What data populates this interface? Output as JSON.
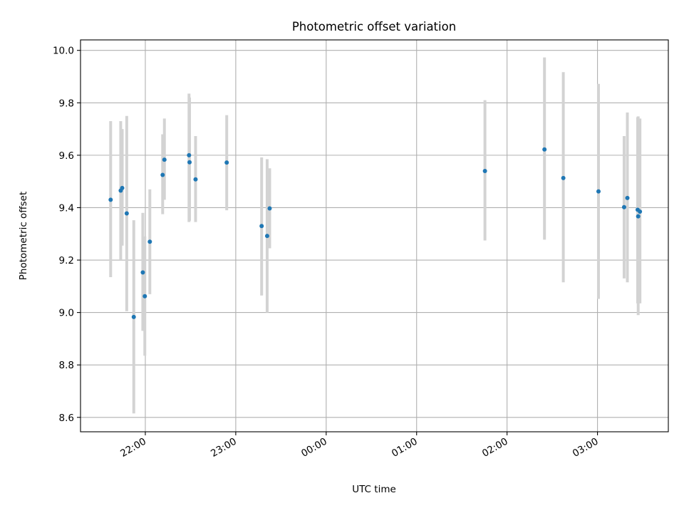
{
  "chart_data": {
    "type": "scatter",
    "title": "Photometric offset variation",
    "xlabel": "UTC time",
    "ylabel": "Photometric offset",
    "grid": true,
    "x_axis": {
      "kind": "time",
      "range": [
        "21:17",
        "03:47"
      ],
      "ticks": [
        "22:00",
        "23:00",
        "00:00",
        "01:00",
        "02:00",
        "03:00"
      ]
    },
    "y_axis": {
      "range": [
        8.545,
        10.04
      ],
      "ticks": [
        8.6,
        8.8,
        9.0,
        9.2,
        9.4,
        9.6,
        9.8,
        10.0
      ],
      "tick_labels": [
        "8.6",
        "8.8",
        "9.0",
        "9.2",
        "9.4",
        "9.6",
        "9.8",
        "10.0"
      ]
    },
    "marker_color": "#1f77b4",
    "errorbar_color": "#d3d3d3",
    "points": [
      {
        "t": "21:37:00",
        "y": 9.43,
        "low": 9.135,
        "high": 9.73
      },
      {
        "t": "21:43:40",
        "y": 9.465,
        "low": 9.2,
        "high": 9.73
      },
      {
        "t": "21:44:40",
        "y": 9.475,
        "low": 9.255,
        "high": 9.7
      },
      {
        "t": "21:47:40",
        "y": 9.378,
        "low": 9.005,
        "high": 9.75
      },
      {
        "t": "21:52:20",
        "y": 8.983,
        "low": 8.615,
        "high": 9.352
      },
      {
        "t": "21:58:20",
        "y": 9.153,
        "low": 8.93,
        "high": 9.38
      },
      {
        "t": "21:59:40",
        "y": 9.062,
        "low": 8.835,
        "high": 9.29
      },
      {
        "t": "22:03:00",
        "y": 9.27,
        "low": 9.07,
        "high": 9.47
      },
      {
        "t": "22:11:30",
        "y": 9.525,
        "low": 9.375,
        "high": 9.68
      },
      {
        "t": "22:12:40",
        "y": 9.583,
        "low": 9.43,
        "high": 9.74
      },
      {
        "t": "22:29:00",
        "y": 9.6,
        "low": 9.345,
        "high": 9.835
      },
      {
        "t": "22:29:20",
        "y": 9.573,
        "low": 9.35,
        "high": 9.82
      },
      {
        "t": "22:33:20",
        "y": 9.508,
        "low": 9.345,
        "high": 9.673
      },
      {
        "t": "22:54:00",
        "y": 9.572,
        "low": 9.39,
        "high": 9.753
      },
      {
        "t": "23:17:10",
        "y": 9.33,
        "low": 9.065,
        "high": 9.592
      },
      {
        "t": "23:20:50",
        "y": 9.292,
        "low": 9.0,
        "high": 9.585
      },
      {
        "t": "23:22:30",
        "y": 9.397,
        "low": 9.245,
        "high": 9.55
      },
      {
        "t": "01:45:20",
        "y": 9.54,
        "low": 9.275,
        "high": 9.81
      },
      {
        "t": "02:24:50",
        "y": 9.622,
        "low": 9.278,
        "high": 9.973
      },
      {
        "t": "02:37:20",
        "y": 9.513,
        "low": 9.115,
        "high": 9.917
      },
      {
        "t": "03:00:40",
        "y": 9.462,
        "low": 9.052,
        "high": 9.872
      },
      {
        "t": "03:17:40",
        "y": 9.402,
        "low": 9.13,
        "high": 9.673
      },
      {
        "t": "03:19:50",
        "y": 9.437,
        "low": 9.115,
        "high": 9.763
      },
      {
        "t": "03:26:40",
        "y": 9.392,
        "low": 9.035,
        "high": 9.745
      },
      {
        "t": "03:27:00",
        "y": 9.367,
        "low": 8.99,
        "high": 9.748
      },
      {
        "t": "03:28:10",
        "y": 9.385,
        "low": 9.035,
        "high": 9.74
      }
    ]
  }
}
